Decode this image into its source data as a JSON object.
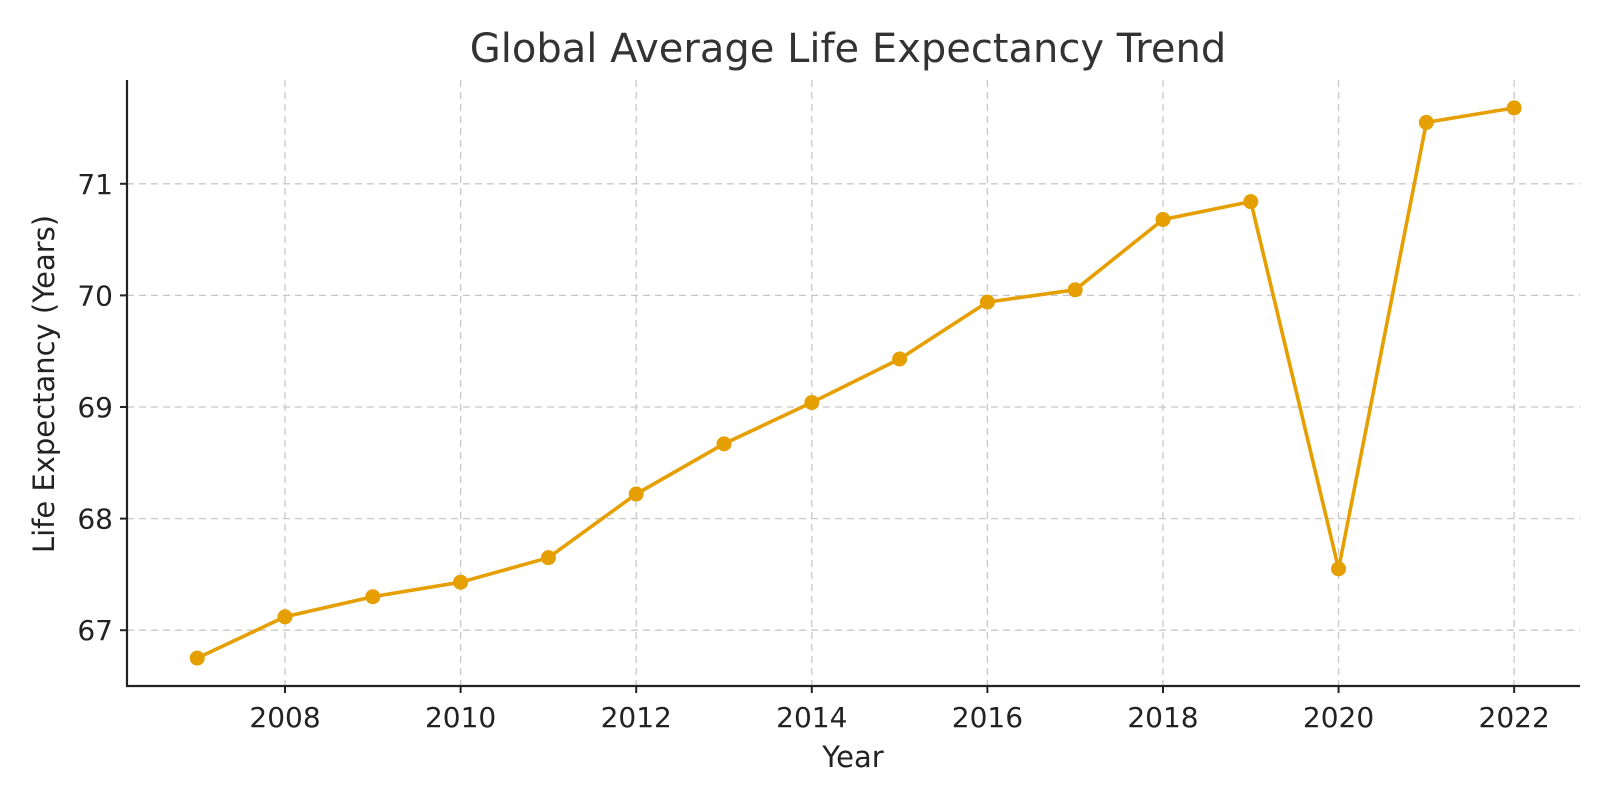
{
  "colors": {
    "series": "#e69f00",
    "grid": "#c8c8c8",
    "axis": "#222222",
    "title": "#333333"
  },
  "chart_data": {
    "type": "line",
    "title": "Global Average Life Expectancy Trend",
    "xlabel": "Year",
    "ylabel": "Life Expectancy (Years)",
    "xlim": [
      2006.2,
      2022.75
    ],
    "ylim": [
      66.5,
      71.93
    ],
    "x_ticks": [
      2008,
      2010,
      2012,
      2014,
      2016,
      2018,
      2020,
      2022
    ],
    "y_ticks": [
      67,
      68,
      69,
      70,
      71
    ],
    "grid": true,
    "legend": "none",
    "marker": "circle",
    "series": [
      {
        "x": [
          2007,
          2008,
          2009,
          2010,
          2011,
          2012,
          2013,
          2014,
          2015,
          2016,
          2017,
          2018,
          2019,
          2020,
          2021,
          2022
        ],
        "values": [
          66.75,
          67.12,
          67.3,
          67.43,
          67.65,
          68.22,
          68.67,
          69.04,
          69.43,
          69.94,
          70.05,
          70.68,
          70.84,
          67.55,
          71.55,
          71.68
        ]
      }
    ]
  }
}
